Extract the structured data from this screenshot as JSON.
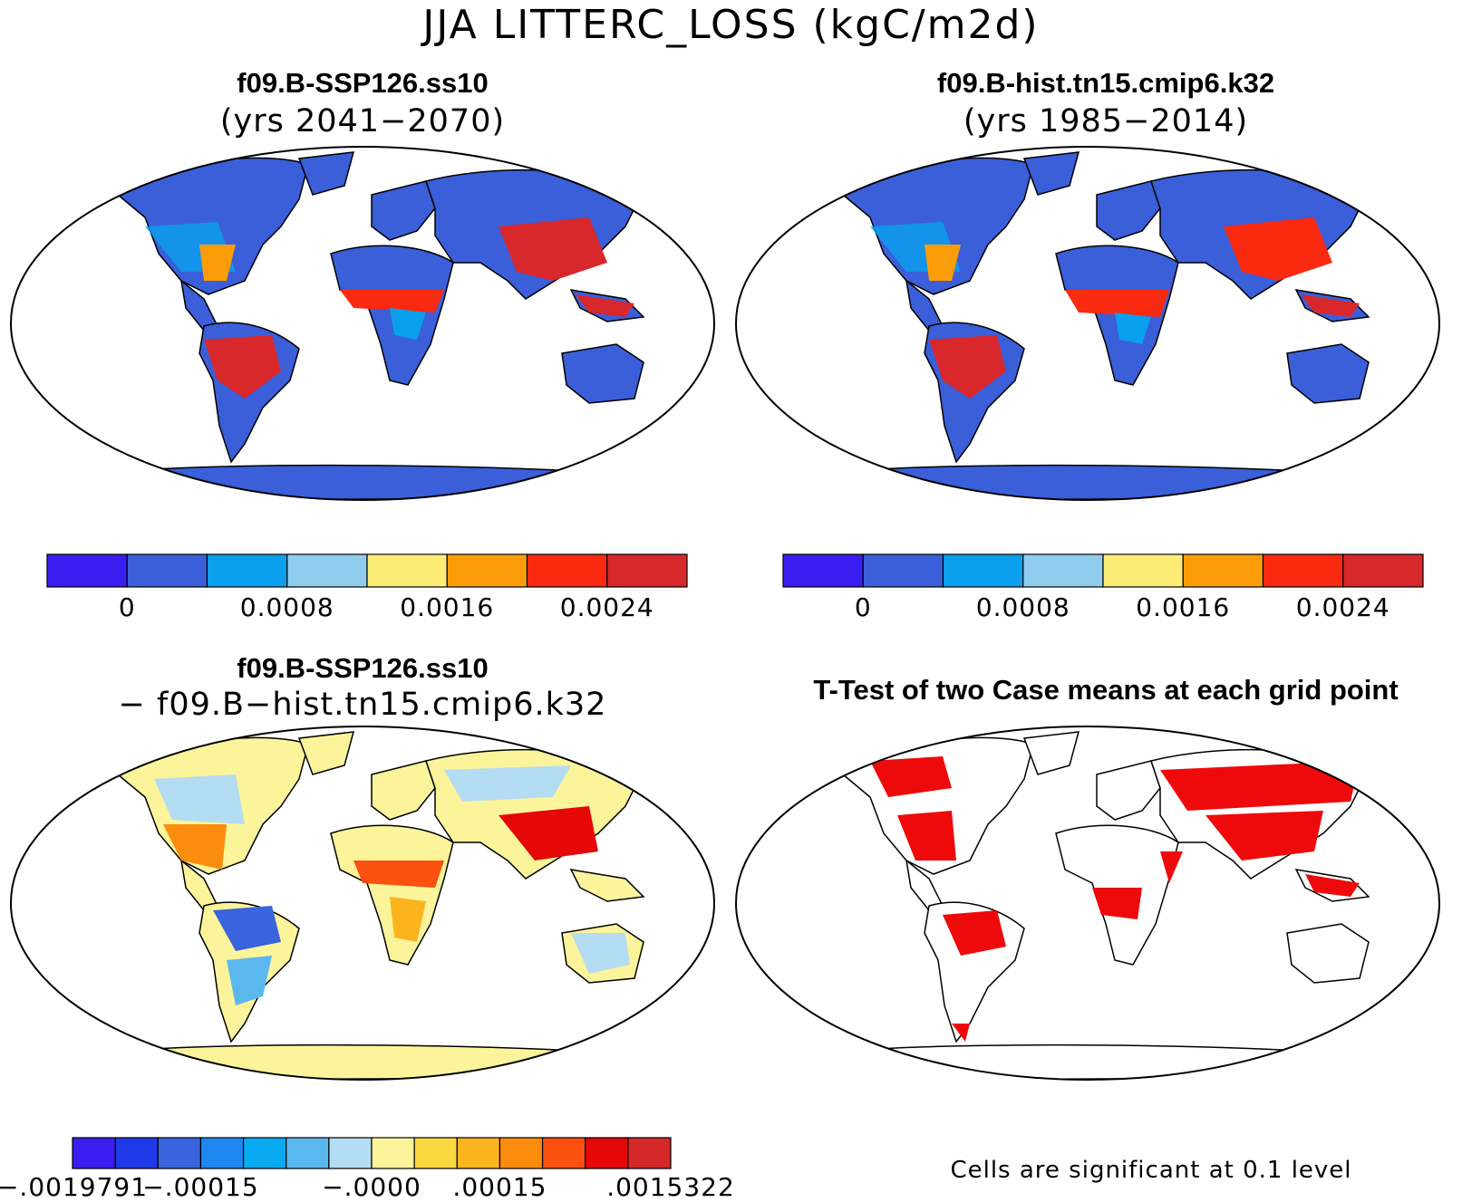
{
  "title": "JJA LITTERC_LOSS (kgC/m2d)",
  "panels": {
    "top_left": {
      "name": "f09.B-SSP126.ss10",
      "years": "(yrs 2041−2070)"
    },
    "top_right": {
      "name": "f09.B-hist.tn15.cmip6.k32",
      "years": "(yrs 1985−2014)"
    },
    "bottom_left": {
      "name": "f09.B-SSP126.ss10",
      "subtitle": "− f09.B−hist.tn15.cmip6.k32"
    },
    "bottom_right": {
      "name": "T-Test of two Case means at each grid point",
      "note": "Cells are significant at 0.1 level"
    }
  },
  "chart_data": [
    {
      "type": "heatmap",
      "projection": "robinson world map",
      "title": "f09.B-SSP126.ss10",
      "subtitle": "(yrs 2041−2070)",
      "colorbar": {
        "colors": [
          "#3a1ef0",
          "#3a5fd8",
          "#0aa0ee",
          "#90ccee",
          "#fbec76",
          "#fb9c08",
          "#fa2a10",
          "#d8282c"
        ],
        "tick_labels": [
          "0",
          "0.0008",
          "0.0016",
          "0.0024"
        ]
      }
    },
    {
      "type": "heatmap",
      "projection": "robinson world map",
      "title": "f09.B-hist.tn15.cmip6.k32",
      "subtitle": "(yrs 1985−2014)",
      "colorbar": {
        "colors": [
          "#3a1ef0",
          "#3a5fd8",
          "#0aa0ee",
          "#90ccee",
          "#fbec76",
          "#fb9c08",
          "#fa2a10",
          "#d8282c"
        ],
        "tick_labels": [
          "0",
          "0.0008",
          "0.0016",
          "0.0024"
        ]
      }
    },
    {
      "type": "heatmap",
      "projection": "robinson world map",
      "title": "f09.B-SSP126.ss10",
      "subtitle": "− f09.B−hist.tn15.cmip6.k32",
      "colorbar": {
        "colors": [
          "#3a1ef0",
          "#1e3ae8",
          "#3a64de",
          "#1e88f0",
          "#0aaaf0",
          "#5ab8ee",
          "#b4dcf2",
          "#fcf49a",
          "#fcd840",
          "#fcb41e",
          "#fc8c0e",
          "#fc5010",
          "#e40808",
          "#d42828"
        ],
        "tick_labels": [
          "−.0019791",
          "−.00015",
          "−.0000",
          ".00015",
          ".0015322"
        ]
      }
    },
    {
      "type": "heatmap",
      "projection": "robinson world map",
      "title": "T-Test of two Case means at each grid point",
      "significance_color": "#ee0a0a",
      "note": "Cells are significant at 0.1 level"
    }
  ]
}
